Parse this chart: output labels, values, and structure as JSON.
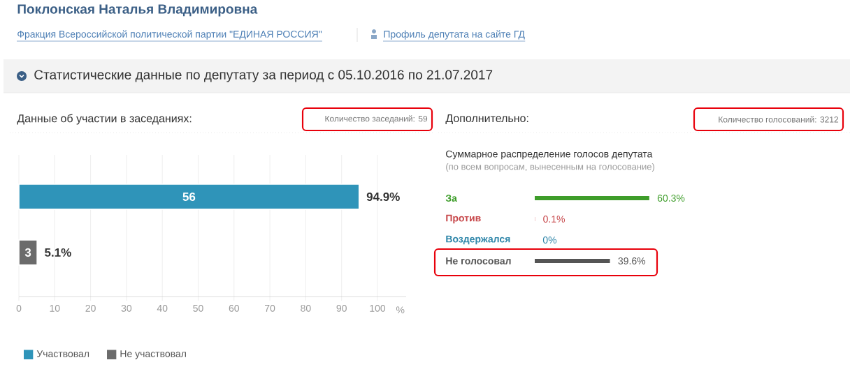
{
  "chart_data": [
    {
      "type": "bar",
      "orientation": "horizontal",
      "title": "Данные об участии в заседаниях:",
      "xlabel": "%",
      "annotations": [
        "Поклонская Наталья Владимировна",
        "Фракция Всероссийской политической партии \"ЕДИНАЯ РОССИЯ\"",
        "Профиль депутата на сайте ГД",
        "Статистические данные по депутату за период с 05.10.2016 по 21.07.2017",
        "Количество заседаний: 59",
        "56",
        "3"
      ],
      "categories": [
        null,
        null
      ],
      "series": [
        {
          "name": "Участвовал",
          "color": "#2f94b9",
          "values": [
            94.9,
            null
          ],
          "value_labels": [
            "94.9%",
            null
          ]
        },
        {
          "name": "Не участвовал",
          "color": "#6b6b6b",
          "values": [
            null,
            5.1
          ],
          "value_labels": [
            null,
            "5.1%"
          ]
        }
      ],
      "xlim": [
        0,
        108
      ],
      "xticks": [
        0,
        10,
        20,
        30,
        40,
        50,
        60,
        70,
        80,
        90,
        100
      ],
      "grid": "x",
      "legend": "bottom left"
    },
    {
      "type": "bar",
      "orientation": "horizontal",
      "title": "Дополнительно:",
      "subtitle": "Суммарное распределение голосов депутата",
      "annotations": [
        "(по всем вопросам, вынесенным на голосование)",
        "Количество голосований: 3212"
      ],
      "categories": [
        "За",
        "Против",
        "Воздержался",
        "Не голосовал"
      ],
      "values": [
        60.3,
        0.1,
        0,
        39.6
      ],
      "value_labels": [
        "60.3%",
        "0.1%",
        "0%",
        "39.6%"
      ],
      "colors": [
        "#3e9d2a",
        "#c7474a",
        "#2f86a9",
        "#555555"
      ],
      "tick_labels": false
    }
  ]
}
